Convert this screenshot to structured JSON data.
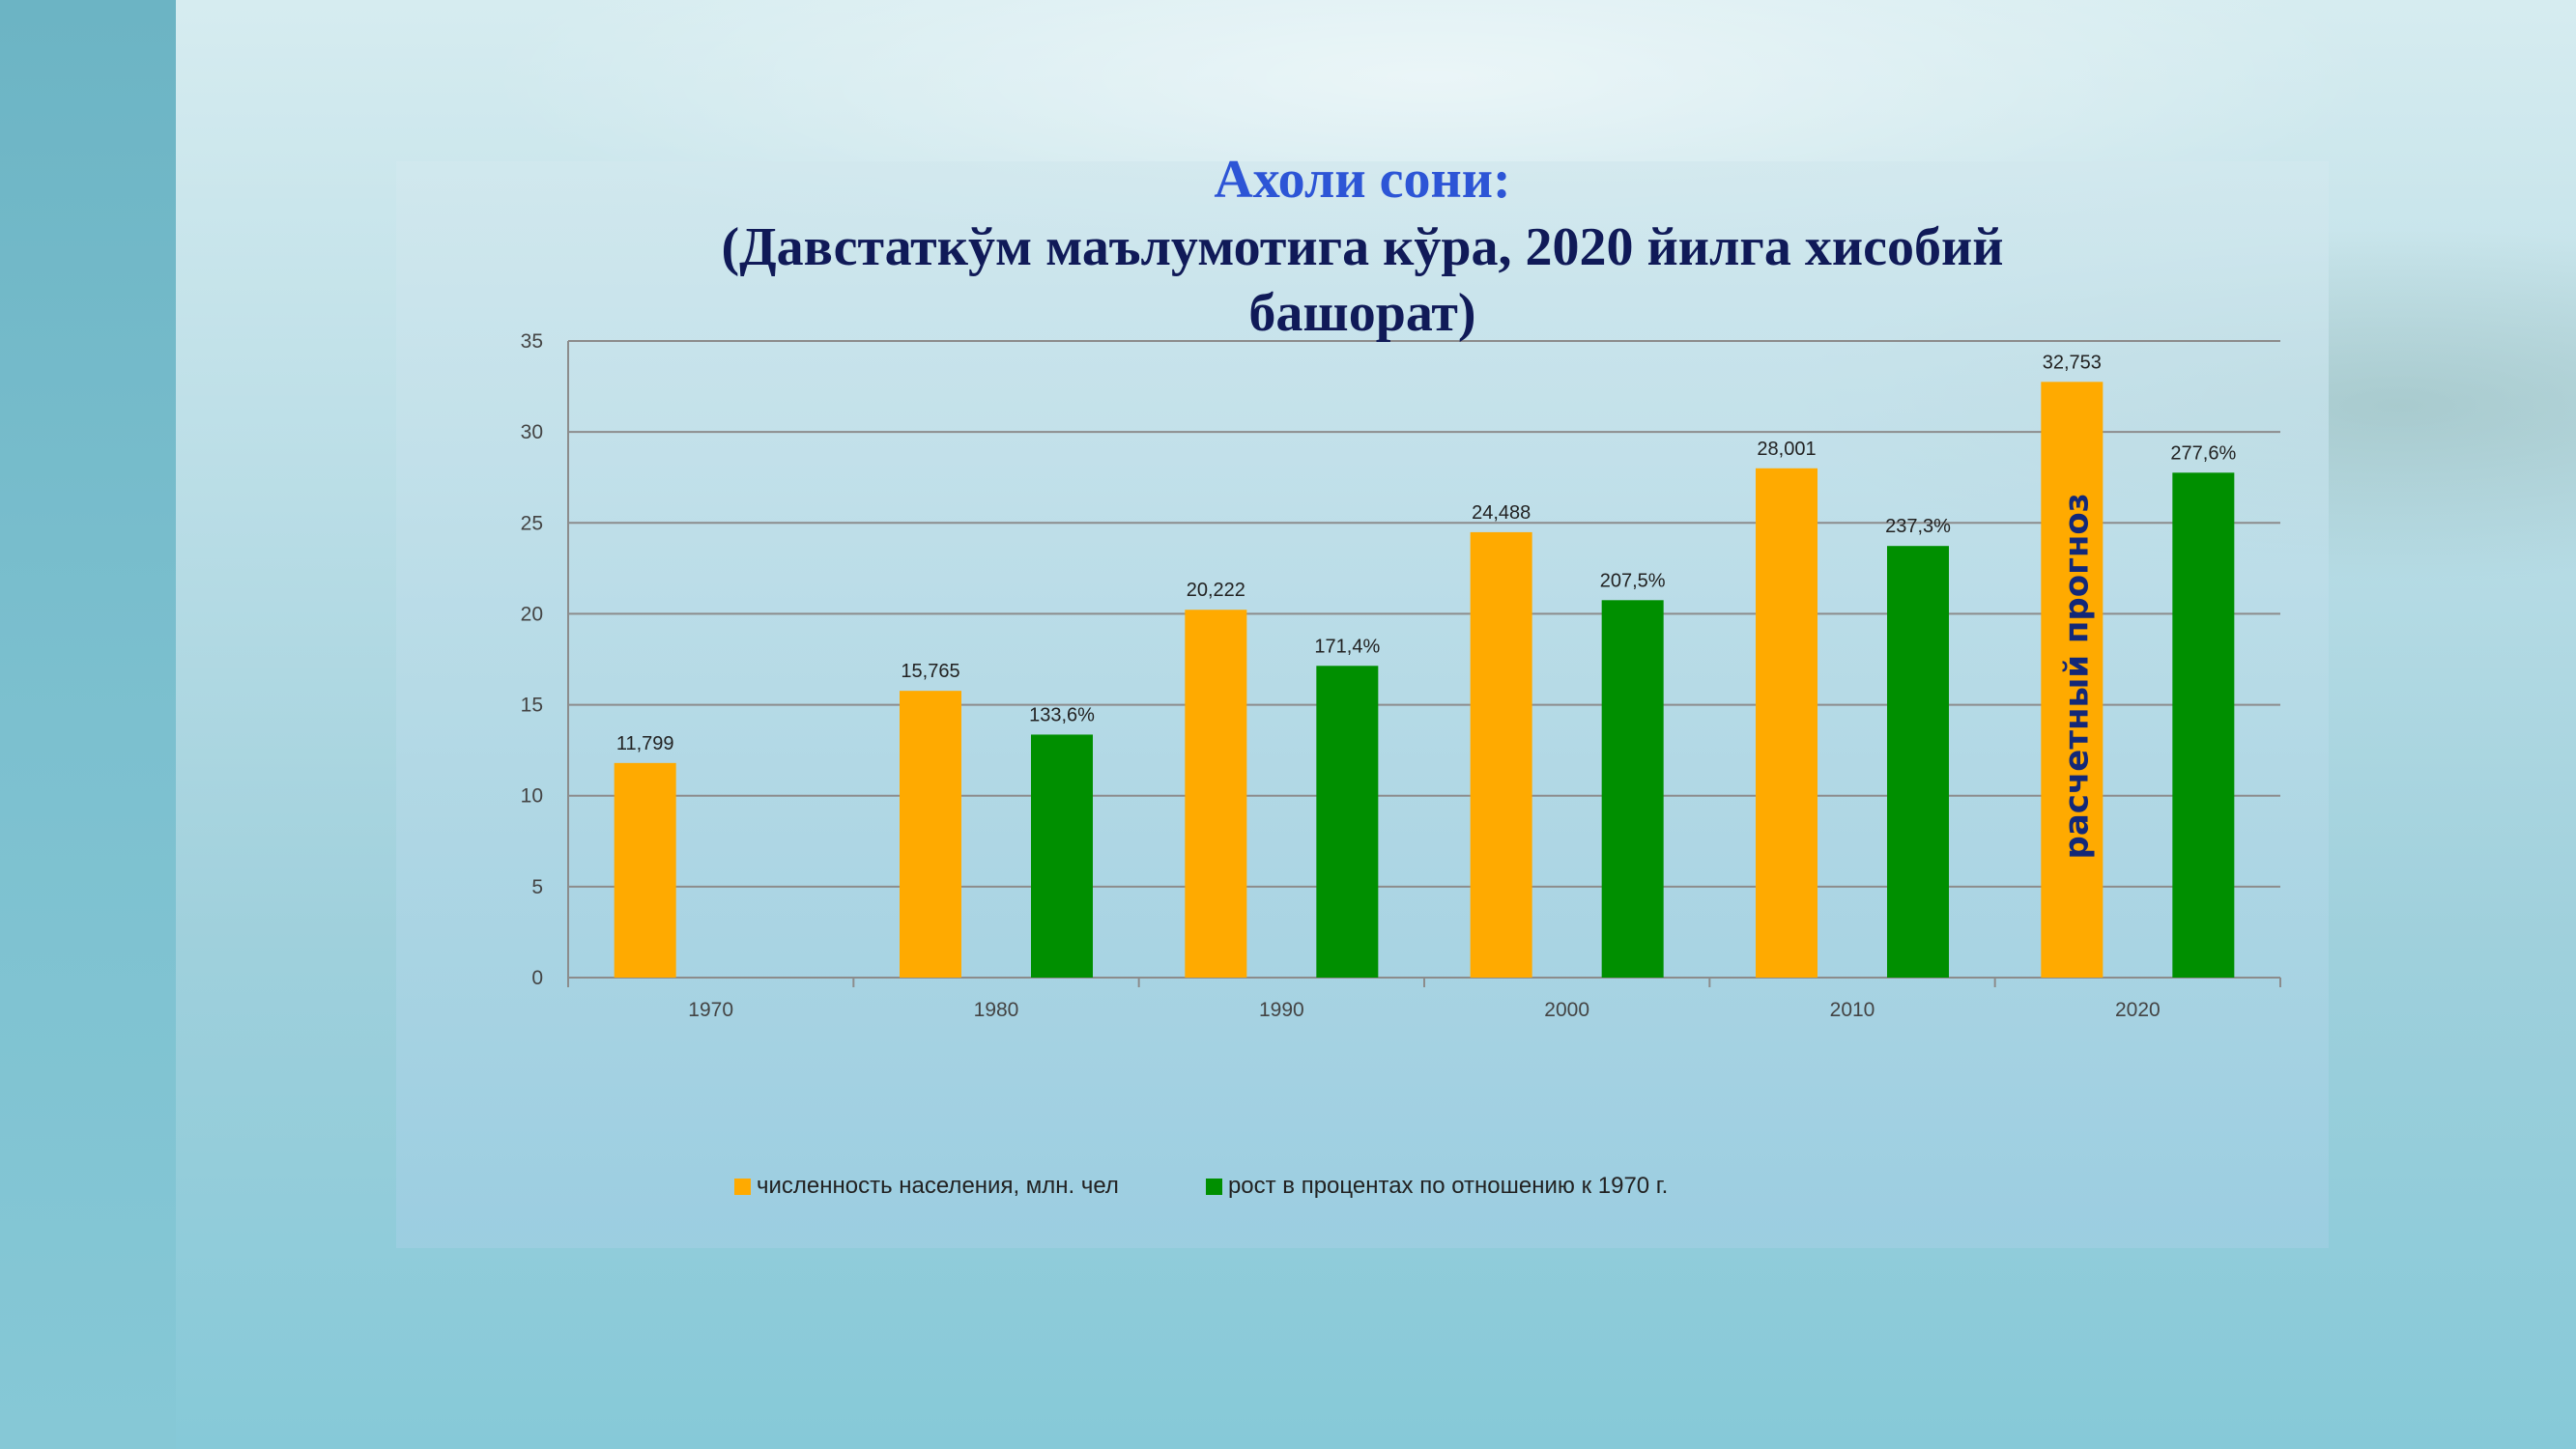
{
  "title": {
    "line1": "Ахоли сони:",
    "line2": "(Давстаткўм маълумотига кўра, 2020 йилга хисобий",
    "line3": "башорат)"
  },
  "colors": {
    "population": "#ffaa00",
    "growth": "#008f00",
    "grid": "#8c8c8c",
    "annotation": "#132878"
  },
  "chart_data": {
    "type": "bar",
    "title": "Ахоли сони: (Давстаткўм маълумотига кўра, 2020 йилга хисобий башорат)",
    "categories": [
      "1970",
      "1980",
      "1990",
      "2000",
      "2010",
      "2020"
    ],
    "y_ticks": [
      "0",
      "5",
      "10",
      "15",
      "20",
      "25",
      "30",
      "35"
    ],
    "ylim": [
      0,
      35
    ],
    "grid": true,
    "legend_position": "bottom",
    "series": [
      {
        "name": "численность населения, млн. чел",
        "values": [
          11.799,
          15.765,
          20.222,
          24.488,
          28.001,
          32.753
        ],
        "labels": [
          "11,799",
          "15,765",
          "20,222",
          "24,488",
          "28,001",
          "32,753"
        ]
      },
      {
        "name": "рост в процентах по отношению к 1970 г.",
        "values": [
          null,
          13.36,
          17.14,
          20.75,
          23.73,
          27.76
        ],
        "labels": [
          "",
          "133,6%",
          "171,4%",
          "207,5%",
          "237,3%",
          "277,6%"
        ]
      }
    ],
    "annotation": "расчетный прогноз"
  }
}
